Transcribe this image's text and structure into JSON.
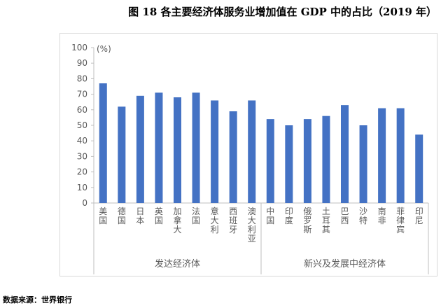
{
  "title": "图 18  各主要经济体服务业增加值在 GDP 中的占比（2019 年）",
  "source": "数据来源：世界银行",
  "chart_data": {
    "type": "bar",
    "unit_label": "(%)",
    "categories": [
      "美国",
      "德国",
      "日本",
      "英国",
      "加拿大",
      "法国",
      "意大利",
      "西班牙",
      "澳大利亚",
      "中国",
      "印度",
      "俄罗斯",
      "土耳其",
      "巴西",
      "沙特",
      "南非",
      "菲律宾",
      "印尼"
    ],
    "values": [
      77,
      62,
      69,
      71,
      68,
      71,
      66,
      59,
      66,
      54,
      50,
      54,
      56,
      63,
      50,
      61,
      61,
      44
    ],
    "groups": [
      {
        "label": "发达经济体",
        "count": 9
      },
      {
        "label": "新兴及发展中经济体",
        "count": 9
      }
    ],
    "yticks": [
      0,
      10,
      20,
      30,
      40,
      50,
      60,
      70,
      80,
      90,
      100
    ],
    "ylim": [
      0,
      100
    ],
    "bar_color": "#4472c4",
    "grid": false
  }
}
